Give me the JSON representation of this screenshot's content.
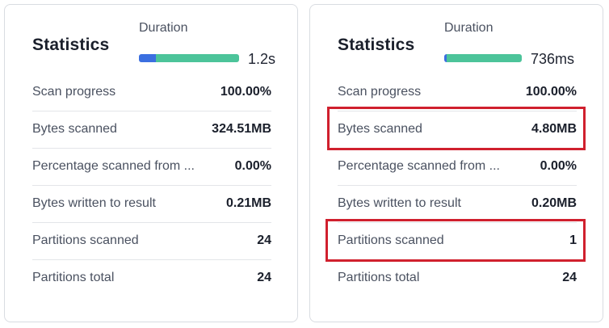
{
  "panels": [
    {
      "title": "Statistics",
      "duration_label": "Duration",
      "duration_value": "1.2s",
      "duration_bar": {
        "compile_fraction": 0.17,
        "execute_fraction": 0.83,
        "colors": [
          "#3b6fe0",
          "#4cc49a"
        ]
      },
      "rows": [
        {
          "label": "Scan progress",
          "value": "100.00%"
        },
        {
          "label": "Bytes scanned",
          "value": "324.51MB"
        },
        {
          "label": "Percentage scanned from ...",
          "value": "0.00%"
        },
        {
          "label": "Bytes written to result",
          "value": "0.21MB"
        },
        {
          "label": "Partitions scanned",
          "value": "24"
        },
        {
          "label": "Partitions total",
          "value": "24"
        }
      ]
    },
    {
      "title": "Statistics",
      "duration_label": "Duration",
      "duration_value": "736ms",
      "duration_bar": {
        "compile_fraction": 0.03,
        "execute_fraction": 0.97,
        "colors": [
          "#3b6fe0",
          "#4cc49a"
        ]
      },
      "rows": [
        {
          "label": "Scan progress",
          "value": "100.00%"
        },
        {
          "label": "Bytes scanned",
          "value": "4.80MB"
        },
        {
          "label": "Percentage scanned from ...",
          "value": "0.00%"
        },
        {
          "label": "Bytes written to result",
          "value": "0.20MB"
        },
        {
          "label": "Partitions scanned",
          "value": "1"
        },
        {
          "label": "Partitions total",
          "value": "24"
        }
      ]
    }
  ],
  "highlight_color": "#d0202e"
}
